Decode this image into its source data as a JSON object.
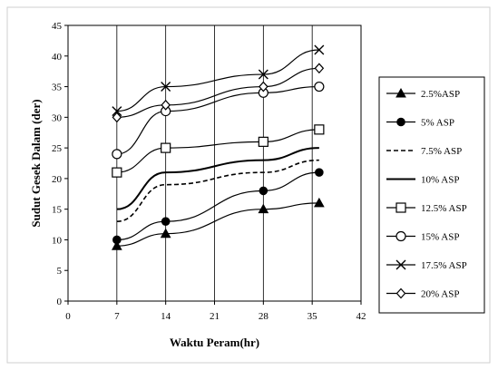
{
  "chart_data": {
    "type": "line",
    "title": "",
    "xlabel": "Waktu Peram(hr)",
    "ylabel": "Sudut Gesek Dalam (der)",
    "xlim": [
      0,
      42
    ],
    "ylim": [
      0,
      45
    ],
    "xticks": [
      0,
      7,
      14,
      21,
      28,
      35,
      42
    ],
    "yticks": [
      0,
      5,
      10,
      15,
      20,
      25,
      30,
      35,
      40,
      45
    ],
    "grid": "vertical",
    "legend": "right",
    "series": [
      {
        "name": "2.5%ASP",
        "marker": "triangle-filled",
        "dash": "solid",
        "x": [
          7,
          14,
          28,
          36
        ],
        "y": [
          9,
          11,
          15,
          16
        ]
      },
      {
        "name": "5% ASP",
        "marker": "circle-filled",
        "dash": "solid",
        "x": [
          7,
          14,
          28,
          36
        ],
        "y": [
          10,
          13,
          18,
          21
        ]
      },
      {
        "name": "7.5% ASP",
        "marker": "none",
        "dash": "dashed",
        "x": [
          7,
          14,
          28,
          36
        ],
        "y": [
          13,
          19,
          21,
          23
        ]
      },
      {
        "name": "10% ASP",
        "marker": "none",
        "dash": "solid-bold",
        "x": [
          7,
          14,
          28,
          36
        ],
        "y": [
          15,
          21,
          23,
          25
        ]
      },
      {
        "name": "12.5% ASP",
        "marker": "square-open",
        "dash": "solid",
        "x": [
          7,
          14,
          28,
          36
        ],
        "y": [
          21,
          25,
          26,
          28
        ]
      },
      {
        "name": "15% ASP",
        "marker": "circle-open",
        "dash": "solid",
        "x": [
          7,
          14,
          28,
          36
        ],
        "y": [
          24,
          31,
          34,
          35
        ]
      },
      {
        "name": "17.5% ASP",
        "marker": "x",
        "dash": "solid",
        "x": [
          7,
          14,
          28,
          36
        ],
        "y": [
          31,
          35,
          37,
          41
        ]
      },
      {
        "name": "20% ASP",
        "marker": "diamond-open",
        "dash": "solid",
        "x": [
          7,
          14,
          28,
          36
        ],
        "y": [
          30,
          32,
          35,
          38
        ]
      }
    ]
  }
}
